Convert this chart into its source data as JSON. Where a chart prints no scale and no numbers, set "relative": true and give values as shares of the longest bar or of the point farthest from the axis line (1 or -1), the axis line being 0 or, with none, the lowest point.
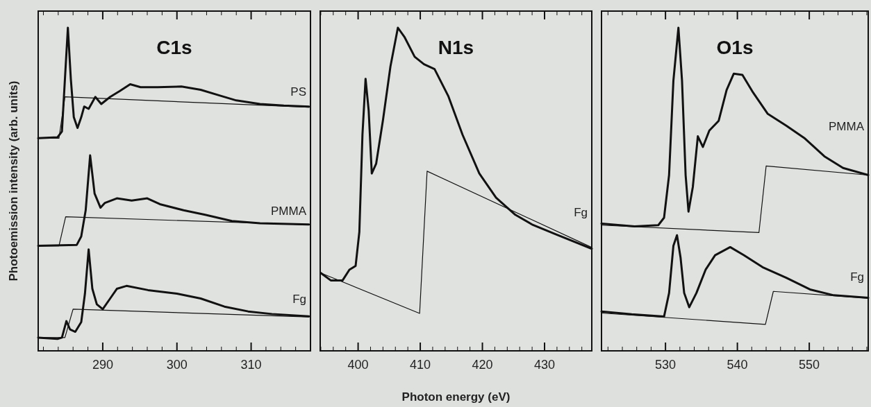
{
  "chart_data": [
    {
      "type": "line",
      "title": "C1s",
      "ylabel": "Photoemission intensity (arb. units)",
      "relative": true,
      "xlim": [
        281.3,
        318
      ],
      "xticks": [
        {
          "value": 282,
          "label": null
        },
        {
          "value": 284,
          "label": null
        },
        {
          "value": 286,
          "label": null
        },
        {
          "value": 288,
          "label": null
        },
        290,
        {
          "value": 292,
          "label": null
        },
        {
          "value": 294,
          "label": null
        },
        {
          "value": 296,
          "label": null
        },
        {
          "value": 298,
          "label": null
        },
        300,
        {
          "value": 302,
          "label": null
        },
        {
          "value": 304,
          "label": null
        },
        {
          "value": 306,
          "label": null
        },
        {
          "value": 308,
          "label": null
        },
        310,
        {
          "value": 312,
          "label": null
        },
        {
          "value": 314,
          "label": null
        },
        {
          "value": 316,
          "label": null
        }
      ],
      "tick_labels": "x",
      "series": [
        {
          "name": "PS",
          "color": "#111111",
          "x": [
            281.3,
            283.9,
            284.5,
            284.9,
            285.3,
            285.7,
            286.1,
            286.6,
            287.1,
            287.5,
            288.1,
            289.0,
            289.8,
            291.0,
            292.3,
            293.7,
            295.1,
            297.4,
            300.6,
            303.2,
            305.8,
            308.0,
            311.2,
            314.4,
            317.8
          ],
          "values": [
            0.658,
            0.661,
            0.679,
            0.84,
            1.0,
            0.841,
            0.723,
            0.69,
            0.723,
            0.756,
            0.749,
            0.786,
            0.764,
            0.786,
            0.804,
            0.825,
            0.816,
            0.816,
            0.818,
            0.808,
            0.79,
            0.775,
            0.764,
            0.759,
            0.756
          ]
        },
        {
          "color": "#111111",
          "x": [
            281.3,
            284.1,
            284.9,
            317.8
          ],
          "values": [
            0.658,
            0.658,
            0.786,
            0.754
          ]
        },
        {
          "name": "PMMA",
          "color": "#111111",
          "x": [
            281.3,
            286.5,
            287.1,
            287.7,
            288.3,
            288.9,
            289.7,
            290.3,
            291.9,
            293.9,
            296.0,
            297.7,
            300.9,
            303.8,
            307.4,
            311.2,
            317.8
          ],
          "values": [
            0.325,
            0.328,
            0.354,
            0.435,
            0.605,
            0.487,
            0.443,
            0.458,
            0.472,
            0.465,
            0.472,
            0.454,
            0.435,
            0.421,
            0.402,
            0.395,
            0.391
          ]
        },
        {
          "color": "#111111",
          "x": [
            281.3,
            284.1,
            285.0,
            317.8
          ],
          "values": [
            0.325,
            0.325,
            0.415,
            0.39
          ]
        },
        {
          "name": "Fg",
          "color": "#111111",
          "x": [
            281.3,
            283.9,
            284.5,
            285.1,
            285.6,
            286.3,
            287.1,
            287.6,
            288.1,
            288.6,
            289.2,
            290.0,
            291.0,
            291.9,
            293.2,
            296.1,
            300.0,
            303.2,
            306.4,
            309.6,
            312.8,
            317.8
          ],
          "values": [
            0.041,
            0.037,
            0.041,
            0.092,
            0.066,
            0.059,
            0.089,
            0.177,
            0.314,
            0.192,
            0.144,
            0.129,
            0.162,
            0.192,
            0.201,
            0.188,
            0.177,
            0.162,
            0.137,
            0.122,
            0.114,
            0.107
          ]
        },
        {
          "color": "#111111",
          "x": [
            281.3,
            284.9,
            286.0,
            317.8
          ],
          "values": [
            0.041,
            0.041,
            0.129,
            0.105
          ]
        }
      ]
    },
    {
      "type": "line",
      "title": "N1s",
      "xlabel": "Photon energy (eV)",
      "relative": true,
      "xlim": [
        393.9,
        437.6
      ],
      "xticks": [
        {
          "value": 394,
          "label": null
        },
        {
          "value": 396,
          "label": null
        },
        {
          "value": 398,
          "label": null
        },
        400,
        {
          "value": 402,
          "label": null
        },
        {
          "value": 404,
          "label": null
        },
        {
          "value": 406,
          "label": null
        },
        {
          "value": 408,
          "label": null
        },
        410,
        {
          "value": 412,
          "label": null
        },
        {
          "value": 414,
          "label": null
        },
        {
          "value": 416,
          "label": null
        },
        {
          "value": 418,
          "label": null
        },
        420,
        {
          "value": 422,
          "label": null
        },
        {
          "value": 424,
          "label": null
        },
        {
          "value": 426,
          "label": null
        },
        {
          "value": 428,
          "label": null
        },
        430,
        {
          "value": 432,
          "label": null
        },
        {
          "value": 434,
          "label": null
        },
        {
          "value": 436,
          "label": null
        }
      ],
      "tick_labels": "x",
      "series": [
        {
          "name": "Fg",
          "color": "#111111",
          "x": [
            394.0,
            395.6,
            397.5,
            398.6,
            399.6,
            400.2,
            400.7,
            401.2,
            401.7,
            402.2,
            402.9,
            404.0,
            405.2,
            406.4,
            407.5,
            409.1,
            410.6,
            412.3,
            414.5,
            416.8,
            419.5,
            422.2,
            425.3,
            428.0,
            431.8,
            437.6
          ],
          "values": [
            0.241,
            0.218,
            0.218,
            0.251,
            0.263,
            0.368,
            0.669,
            0.842,
            0.744,
            0.549,
            0.579,
            0.714,
            0.88,
            1.0,
            0.97,
            0.91,
            0.887,
            0.872,
            0.789,
            0.669,
            0.549,
            0.474,
            0.421,
            0.391,
            0.361,
            0.316
          ]
        },
        {
          "color": "#111111",
          "x": [
            394.0,
            409.9,
            411.1,
            437.6
          ],
          "values": [
            0.241,
            0.116,
            0.556,
            0.32
          ]
        }
      ]
    },
    {
      "type": "line",
      "title": "O1s",
      "relative": true,
      "xlim": [
        521.1,
        558.2
      ],
      "xticks": [
        {
          "value": 522,
          "label": null
        },
        {
          "value": 524,
          "label": null
        },
        {
          "value": 526,
          "label": null
        },
        {
          "value": 528,
          "label": null
        },
        530,
        {
          "value": 532,
          "label": null
        },
        {
          "value": 534,
          "label": null
        },
        {
          "value": 536,
          "label": null
        },
        {
          "value": 538,
          "label": null
        },
        540,
        {
          "value": 542,
          "label": null
        },
        {
          "value": 544,
          "label": null
        },
        {
          "value": 546,
          "label": null
        },
        {
          "value": 548,
          "label": null
        },
        550,
        {
          "value": 552,
          "label": null
        },
        {
          "value": 554,
          "label": null
        },
        {
          "value": 556,
          "label": null
        },
        {
          "value": 558,
          "label": null
        }
      ],
      "tick_labels": "x",
      "series": [
        {
          "name": "PMMA",
          "color": "#111111",
          "x": [
            521.1,
            525.7,
            529.0,
            529.8,
            530.5,
            531.1,
            531.8,
            532.3,
            532.8,
            533.2,
            533.8,
            534.5,
            535.2,
            536.1,
            537.4,
            538.5,
            539.5,
            540.7,
            542.2,
            544.2,
            546.8,
            549.4,
            552.1,
            554.7,
            558.2
          ],
          "values": [
            0.394,
            0.385,
            0.389,
            0.412,
            0.544,
            0.836,
            1.0,
            0.836,
            0.544,
            0.431,
            0.507,
            0.664,
            0.631,
            0.682,
            0.712,
            0.807,
            0.858,
            0.854,
            0.799,
            0.734,
            0.697,
            0.657,
            0.602,
            0.566,
            0.544
          ]
        },
        {
          "color": "#111111",
          "x": [
            521.1,
            543.0,
            544.0,
            558.2
          ],
          "values": [
            0.389,
            0.366,
            0.572,
            0.544
          ]
        },
        {
          "name": "Fg",
          "color": "#111111",
          "x": [
            521.1,
            525.3,
            529.8,
            530.5,
            531.1,
            531.6,
            532.1,
            532.6,
            533.3,
            534.3,
            535.6,
            536.9,
            539.0,
            540.9,
            543.5,
            546.8,
            550.1,
            553.4,
            558.2
          ],
          "values": [
            0.122,
            0.113,
            0.106,
            0.179,
            0.325,
            0.358,
            0.288,
            0.179,
            0.135,
            0.179,
            0.252,
            0.296,
            0.321,
            0.296,
            0.259,
            0.226,
            0.19,
            0.172,
            0.164
          ]
        },
        {
          "color": "#111111",
          "x": [
            521.1,
            543.9,
            545.0,
            558.2
          ],
          "values": [
            0.117,
            0.082,
            0.184,
            0.163
          ]
        }
      ]
    }
  ]
}
